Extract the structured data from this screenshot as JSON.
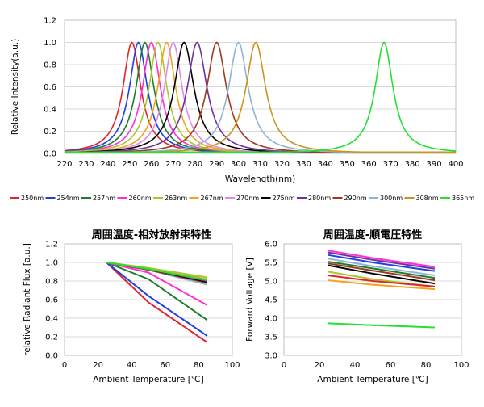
{
  "chart_data": [
    {
      "type": "line",
      "xlabel": "Wavelength(nm)",
      "ylabel": "Relative Intensity(a.u.)",
      "xlim": [
        220,
        400
      ],
      "ylim": [
        0,
        1.2
      ],
      "xticks": [
        "220",
        "230",
        "240",
        "250",
        "260",
        "270",
        "280",
        "290",
        "300",
        "310",
        "320",
        "330",
        "340",
        "350",
        "360",
        "370",
        "380",
        "390",
        "400"
      ],
      "yticks": [
        "0.0",
        "0.2",
        "0.4",
        "0.6",
        "0.8",
        "1.0",
        "1.2"
      ],
      "grid": "horizontal",
      "legend": "bottom",
      "series": [
        {
          "name": "250nm",
          "color": "#e3232c",
          "peak": 251,
          "fwhm": 10
        },
        {
          "name": "254nm",
          "color": "#1f3fe0",
          "peak": 254,
          "fwhm": 10
        },
        {
          "name": "257nm",
          "color": "#1e7a30",
          "peak": 257,
          "fwhm": 10
        },
        {
          "name": "260nm",
          "color": "#ff2fd6",
          "peak": 260,
          "fwhm": 10
        },
        {
          "name": "263nm",
          "color": "#a9c82f",
          "peak": 263,
          "fwhm": 10
        },
        {
          "name": "267nm",
          "color": "#f0a51c",
          "peak": 267,
          "fwhm": 10
        },
        {
          "name": "270nm",
          "color": "#e08ae6",
          "peak": 270,
          "fwhm": 10
        },
        {
          "name": "275nm",
          "color": "#000000",
          "peak": 275,
          "fwhm": 11
        },
        {
          "name": "280nm",
          "color": "#7030a0",
          "peak": 281,
          "fwhm": 11
        },
        {
          "name": "290nm",
          "color": "#a0391c",
          "peak": 290,
          "fwhm": 11
        },
        {
          "name": "300nm",
          "color": "#8eb4d6",
          "peak": 300,
          "fwhm": 11
        },
        {
          "name": "308nm",
          "color": "#c9951f",
          "peak": 308,
          "fwhm": 11
        },
        {
          "name": "365nm",
          "color": "#26e02f",
          "peak": 367,
          "fwhm": 10
        }
      ]
    },
    {
      "type": "line",
      "title": "周囲温度-相対放射束特性",
      "xlabel": "Ambient Temperature [℃]",
      "ylabel": "relative Radiant Flux [a.u.]",
      "xlim": [
        0,
        100
      ],
      "ylim": [
        0,
        1.2
      ],
      "xticks": [
        "0",
        "20",
        "40",
        "60",
        "80",
        "100"
      ],
      "yticks": [
        "0.0",
        "0.2",
        "0.4",
        "0.6",
        "0.8",
        "1.0",
        "1.2"
      ],
      "x": [
        25,
        50,
        85
      ],
      "series": [
        {
          "color": "#e3232c",
          "values": [
            1.0,
            0.57,
            0.14
          ]
        },
        {
          "color": "#1f3fe0",
          "values": [
            1.0,
            0.64,
            0.21
          ]
        },
        {
          "color": "#1e7a30",
          "values": [
            1.0,
            0.82,
            0.38
          ]
        },
        {
          "color": "#ff2fd6",
          "values": [
            1.0,
            0.89,
            0.54
          ]
        },
        {
          "color": "#8eb4d6",
          "values": [
            1.0,
            0.92,
            0.76
          ]
        },
        {
          "color": "#a0391c",
          "values": [
            1.0,
            0.92,
            0.78
          ]
        },
        {
          "color": "#000000",
          "values": [
            1.0,
            0.93,
            0.79
          ]
        },
        {
          "color": "#7030a0",
          "values": [
            1.0,
            0.93,
            0.8
          ]
        },
        {
          "color": "#f0a51c",
          "values": [
            1.0,
            0.94,
            0.82
          ]
        },
        {
          "color": "#a9c82f",
          "values": [
            1.0,
            0.94,
            0.84
          ]
        },
        {
          "color": "#26e02f",
          "values": [
            1.0,
            0.93,
            0.81
          ]
        }
      ]
    },
    {
      "type": "line",
      "title": "周囲温度-順電圧特性",
      "xlabel": "Ambient Temperature [℃]",
      "ylabel": "Forward Voltage [V]",
      "xlim": [
        0,
        100
      ],
      "ylim": [
        3.0,
        6.0
      ],
      "xticks": [
        "0",
        "20",
        "40",
        "60",
        "80",
        "100"
      ],
      "yticks": [
        "3.0",
        "3.5",
        "4.0",
        "4.5",
        "5.0",
        "5.5",
        "6.0"
      ],
      "x": [
        25,
        50,
        85
      ],
      "series": [
        {
          "color": "#ff2fd6",
          "values": [
            5.82,
            5.62,
            5.38
          ]
        },
        {
          "color": "#7030a0",
          "values": [
            5.77,
            5.57,
            5.33
          ]
        },
        {
          "color": "#1f3fe0",
          "values": [
            5.7,
            5.5,
            5.27
          ]
        },
        {
          "color": "#8eb4d6",
          "values": [
            5.6,
            5.4,
            5.15
          ]
        },
        {
          "color": "#1e7a30",
          "values": [
            5.52,
            5.34,
            5.08
          ]
        },
        {
          "color": "#a0391c",
          "values": [
            5.47,
            5.28,
            5.02
          ]
        },
        {
          "color": "#000000",
          "values": [
            5.42,
            5.2,
            4.93
          ]
        },
        {
          "color": "#a9c82f",
          "values": [
            5.25,
            5.05,
            4.85
          ]
        },
        {
          "color": "#e3232c",
          "values": [
            5.15,
            5.0,
            4.85
          ]
        },
        {
          "color": "#f0a51c",
          "values": [
            5.02,
            4.9,
            4.78
          ]
        },
        {
          "color": "#26e02f",
          "values": [
            3.86,
            3.81,
            3.75
          ]
        }
      ]
    }
  ]
}
